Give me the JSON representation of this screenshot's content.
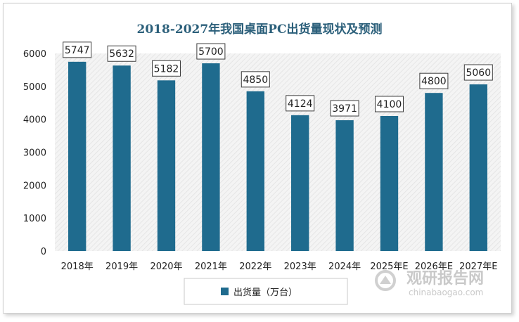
{
  "chart_data": {
    "type": "bar",
    "title": "2018-2027年我国桌面PC出货量现状及预测",
    "categories": [
      "2018年",
      "2019年",
      "2020年",
      "2021年",
      "2022年",
      "2023年",
      "2024年",
      "2025年E",
      "2026年E",
      "2027年E"
    ],
    "series": [
      {
        "name": "出货量（万台）",
        "values": [
          5747,
          5632,
          5182,
          5700,
          4850,
          4124,
          3971,
          4100,
          4800,
          5060
        ]
      }
    ],
    "data_labels": [
      "5747",
      "5632",
      "5182",
      "5700",
      "4850",
      "4124",
      "3971",
      "4100",
      "4800",
      "5060"
    ],
    "ylim": [
      0,
      6000
    ],
    "yticks": [
      0,
      1000,
      2000,
      3000,
      4000,
      5000,
      6000
    ],
    "legend_position": "bottom",
    "grid": false,
    "bar_color": "#1f6b8e"
  },
  "watermark": {
    "text_cn": "观研报告网",
    "text_en": "chinabaogao.com",
    "icon": "guanyan-logo-icon"
  }
}
